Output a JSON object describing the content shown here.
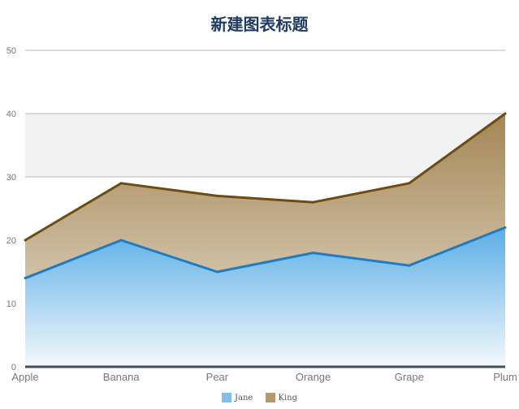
{
  "chart_data": {
    "type": "area",
    "title": "新建图表标题",
    "categories": [
      "Apple",
      "Banana",
      "Pear",
      "Orange",
      "Grape",
      "Plum"
    ],
    "series": [
      {
        "name": "Jane",
        "values": [
          14,
          20,
          15,
          18,
          16,
          22
        ],
        "color": "#1f7bc4",
        "fill": "#7fbfea"
      },
      {
        "name": "King",
        "values": [
          20,
          29,
          27,
          26,
          29,
          40
        ],
        "color": "#6e4c10",
        "fill": "#b4996c"
      }
    ],
    "y_ticks": [
      "0",
      "10",
      "20",
      "30",
      "40",
      "50"
    ],
    "ylim": [
      0,
      50
    ],
    "grid": true,
    "legend_position": "bottom"
  }
}
